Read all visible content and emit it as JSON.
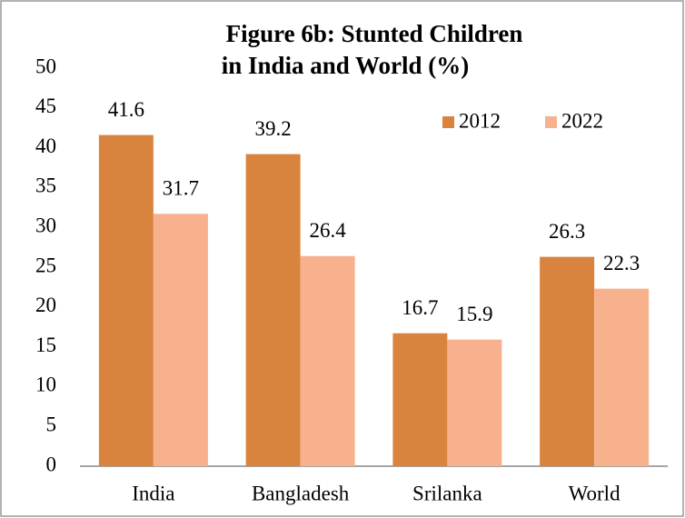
{
  "chart_data": {
    "type": "bar",
    "title": [
      "Figure 6b: Stunted Children",
      "in India and World (%)"
    ],
    "categories": [
      "India",
      "Bangladesh",
      "Srilanka",
      "World"
    ],
    "series": [
      {
        "name": "2012",
        "color": "#d9843e",
        "values": [
          41.6,
          39.2,
          16.7,
          26.3
        ]
      },
      {
        "name": "2022",
        "color": "#f7b18d",
        "values": [
          31.7,
          26.4,
          15.9,
          22.3
        ]
      }
    ],
    "ylim": [
      0,
      50
    ],
    "yticks": [
      0,
      5,
      10,
      15,
      20,
      25,
      30,
      35,
      40,
      45,
      50
    ],
    "grid": false,
    "legend": "top-right"
  }
}
